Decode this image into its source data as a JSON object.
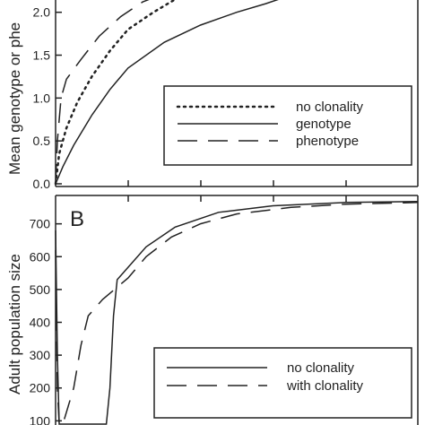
{
  "chart_data": [
    {
      "type": "line",
      "ylabel": "Mean genotype or phe",
      "ylim": [
        0.0,
        2.3
      ],
      "y_ticks": [
        "0.0",
        "0.5",
        "1.0",
        "1.5",
        "2.0"
      ],
      "legend": {
        "placement": "right",
        "entries": [
          "no clonality",
          "genotype",
          "phenotype"
        ]
      },
      "series": [
        {
          "name": "no clonality",
          "style": "dotted",
          "points": [
            [
              0,
              0.0
            ],
            [
              0.01,
              0.35
            ],
            [
              0.03,
              0.65
            ],
            [
              0.06,
              0.95
            ],
            [
              0.1,
              1.25
            ],
            [
              0.15,
              1.55
            ],
            [
              0.2,
              1.8
            ],
            [
              0.27,
              2.0
            ],
            [
              0.33,
              2.15
            ],
            [
              0.4,
              2.3
            ]
          ]
        },
        {
          "name": "genotype",
          "style": "solid",
          "points": [
            [
              0,
              0.0
            ],
            [
              0.02,
              0.2
            ],
            [
              0.05,
              0.45
            ],
            [
              0.1,
              0.8
            ],
            [
              0.15,
              1.1
            ],
            [
              0.2,
              1.35
            ],
            [
              0.3,
              1.65
            ],
            [
              0.4,
              1.85
            ],
            [
              0.5,
              2.0
            ],
            [
              0.58,
              2.1
            ],
            [
              0.65,
              2.2
            ]
          ]
        },
        {
          "name": "phenotype",
          "style": "dashed",
          "points": [
            [
              0,
              0.0
            ],
            [
              0.005,
              0.5
            ],
            [
              0.015,
              1.0
            ],
            [
              0.03,
              1.22
            ],
            [
              0.07,
              1.45
            ],
            [
              0.12,
              1.72
            ],
            [
              0.18,
              1.95
            ],
            [
              0.24,
              2.12
            ],
            [
              0.3,
              2.22
            ],
            [
              0.36,
              2.3
            ]
          ]
        }
      ]
    },
    {
      "type": "line",
      "panel_label": "B",
      "ylabel": "Adult population size",
      "ylim": [
        90,
        770
      ],
      "y_ticks": [
        "100",
        "200",
        "300",
        "400",
        "500",
        "600",
        "700"
      ],
      "legend": {
        "placement": "lower-right",
        "entries": [
          "no clonality",
          "with clonality"
        ]
      },
      "series": [
        {
          "name": "no clonality",
          "style": "solid",
          "points": [
            [
              0,
              680
            ],
            [
              0.005,
              300
            ],
            [
              0.01,
              90
            ],
            [
              0.14,
              90
            ],
            [
              0.15,
              200
            ],
            [
              0.16,
              420
            ],
            [
              0.17,
              530
            ],
            [
              0.19,
              555
            ],
            [
              0.25,
              630
            ],
            [
              0.33,
              690
            ],
            [
              0.45,
              735
            ],
            [
              0.6,
              755
            ],
            [
              0.8,
              765
            ],
            [
              1.0,
              768
            ]
          ]
        },
        {
          "name": "with clonality",
          "style": "dashed",
          "points": [
            [
              0,
              620
            ],
            [
              0.005,
              200
            ],
            [
              0.01,
              90
            ],
            [
              0.02,
              90
            ],
            [
              0.05,
              200
            ],
            [
              0.07,
              330
            ],
            [
              0.09,
              420
            ],
            [
              0.13,
              470
            ],
            [
              0.2,
              535
            ],
            [
              0.25,
              600
            ],
            [
              0.32,
              660
            ],
            [
              0.4,
              700
            ],
            [
              0.5,
              730
            ],
            [
              0.65,
              750
            ],
            [
              0.8,
              760
            ],
            [
              1.0,
              765
            ]
          ]
        }
      ]
    }
  ]
}
